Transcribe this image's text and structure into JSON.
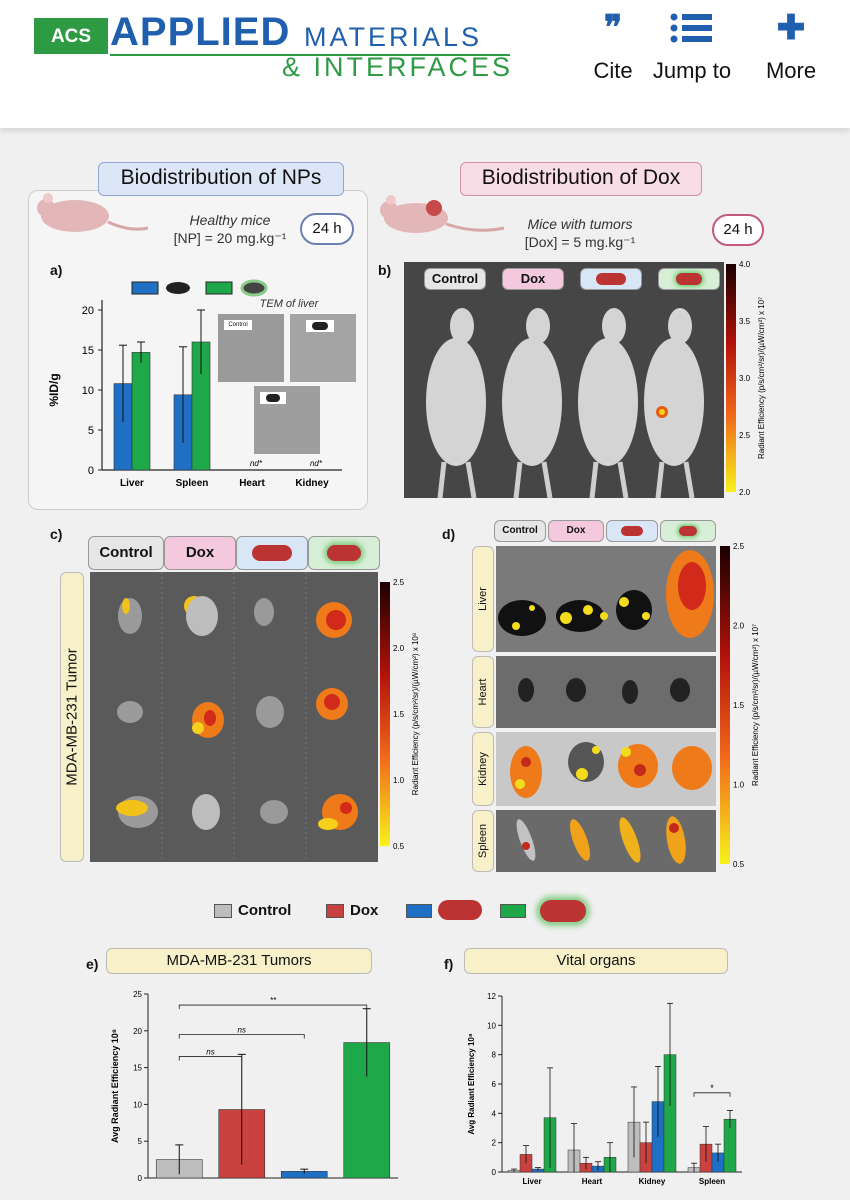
{
  "header": {
    "logo_acs": "ACS",
    "logo_applied": "APPLIED",
    "logo_materials": "MATERIALS",
    "logo_interfaces": "& INTERFACES",
    "nav": [
      {
        "label": "Cite",
        "icon": "quote-icon"
      },
      {
        "label": "Jump to",
        "icon": "list-icon"
      },
      {
        "label": "More",
        "icon": "plus-icon"
      }
    ]
  },
  "figure": {
    "left_title": "Biodistribution of NPs",
    "right_title": "Biodistribution of Dox",
    "left_note_1": "Healthy mice",
    "left_note_2": "[NP] = 20 mg.kg⁻¹",
    "left_time": "24 h",
    "right_note_1": "Mice with tumors",
    "right_note_2": "[Dox] = 5 mg.kg⁻¹",
    "right_time": "24 h",
    "panel_a": "a)",
    "panel_b": "b)",
    "panel_c": "c)",
    "panel_d": "d)",
    "panel_e": "e)",
    "panel_f": "f)",
    "tem_label": "TEM of liver",
    "tem_control": "Control",
    "group_labels": [
      "Control",
      "Dox"
    ],
    "tumor_label": "MDA-MB-231 Tumor",
    "organ_labels": [
      "Liver",
      "Heart",
      "Kidney",
      "Spleen"
    ],
    "colorbar_b": {
      "title": "Radiant Efficiency (p/s/cm²/sr)/(µW/cm²) x 10⁷",
      "ticks": [
        "4.0",
        "3.5",
        "3.0",
        "2.5",
        "2.0"
      ]
    },
    "colorbar_c": {
      "title": "Radiant Efficiency (p/s/cm²/sr)/(µW/cm²) x 10⁸",
      "ticks": [
        "2.5",
        "2.0",
        "1.5",
        "1.0",
        "0.5"
      ]
    },
    "colorbar_d": {
      "title": "Radiant Efficiency (p/s/cm²/sr)/(µW/cm²) x 10⁷",
      "ticks": [
        "2.5",
        "2.0",
        "1.5",
        "1.0",
        "0.5"
      ]
    },
    "legend_control": "Control",
    "legend_dox": "Dox",
    "title_e": "MDA-MB-231 Tumors",
    "title_f": "Vital organs",
    "colors": {
      "blue": "#1f6fc4",
      "green": "#1fa84a",
      "gray": "#bdbdbd",
      "red": "#c9423f"
    }
  },
  "chart_data": [
    {
      "type": "bar",
      "panel": "a",
      "categories": [
        "Liver",
        "Spleen",
        "Heart",
        "Kidney"
      ],
      "ylabel": "%ID/g",
      "ylim": [
        0,
        20
      ],
      "yticks": [
        "0",
        "5",
        "10",
        "15",
        "20"
      ],
      "series": [
        {
          "values": [
            10.8,
            9.4,
            0,
            0
          ],
          "errors": [
            4.8,
            6.0,
            0,
            0
          ],
          "color": "#1f6fc4"
        },
        {
          "values": [
            14.7,
            16.0,
            0,
            0
          ],
          "errors": [
            1.3,
            4.0,
            0,
            0
          ],
          "color": "#1fa84a"
        }
      ],
      "annotations": [
        "nd*",
        "nd*"
      ]
    },
    {
      "type": "bar",
      "panel": "e",
      "categories": [
        "Control",
        "Dox",
        "Blue NP",
        "Green NP"
      ],
      "ylabel": "Avg Radiant Efficiency 10⁸",
      "ylim": [
        0,
        25
      ],
      "yticks": [
        "0",
        "5",
        "10",
        "15",
        "20",
        "25"
      ],
      "values": [
        2.5,
        9.3,
        0.9,
        18.4
      ],
      "errors": [
        2.0,
        7.5,
        0.3,
        4.6
      ],
      "colors": [
        "#bdbdbd",
        "#c9423f",
        "#1f6fc4",
        "#1fa84a"
      ],
      "annotations": [
        "ns",
        "ns",
        "**"
      ]
    },
    {
      "type": "bar",
      "panel": "f",
      "categories": [
        "Liver",
        "Heart",
        "Kidney",
        "Spleen"
      ],
      "ylabel": "Avg Radiant Efficiency 10⁸",
      "ylim": [
        0,
        12
      ],
      "yticks": [
        "0",
        "2",
        "4",
        "6",
        "8",
        "10",
        "12"
      ],
      "series": [
        {
          "values": [
            0.1,
            1.5,
            3.4,
            0.3
          ],
          "errors": [
            0.1,
            1.8,
            2.4,
            0.3
          ],
          "color": "#bdbdbd"
        },
        {
          "values": [
            1.2,
            0.6,
            2.0,
            1.9
          ],
          "errors": [
            0.6,
            0.4,
            1.4,
            1.2
          ],
          "color": "#c9423f"
        },
        {
          "values": [
            0.2,
            0.4,
            4.8,
            1.3
          ],
          "errors": [
            0.1,
            0.3,
            2.4,
            0.6
          ],
          "color": "#1f6fc4"
        },
        {
          "values": [
            3.7,
            1.0,
            8.0,
            3.6
          ],
          "errors": [
            3.4,
            1.0,
            3.5,
            0.6
          ],
          "color": "#1fa84a"
        }
      ],
      "annotations": [
        "*"
      ]
    }
  ]
}
